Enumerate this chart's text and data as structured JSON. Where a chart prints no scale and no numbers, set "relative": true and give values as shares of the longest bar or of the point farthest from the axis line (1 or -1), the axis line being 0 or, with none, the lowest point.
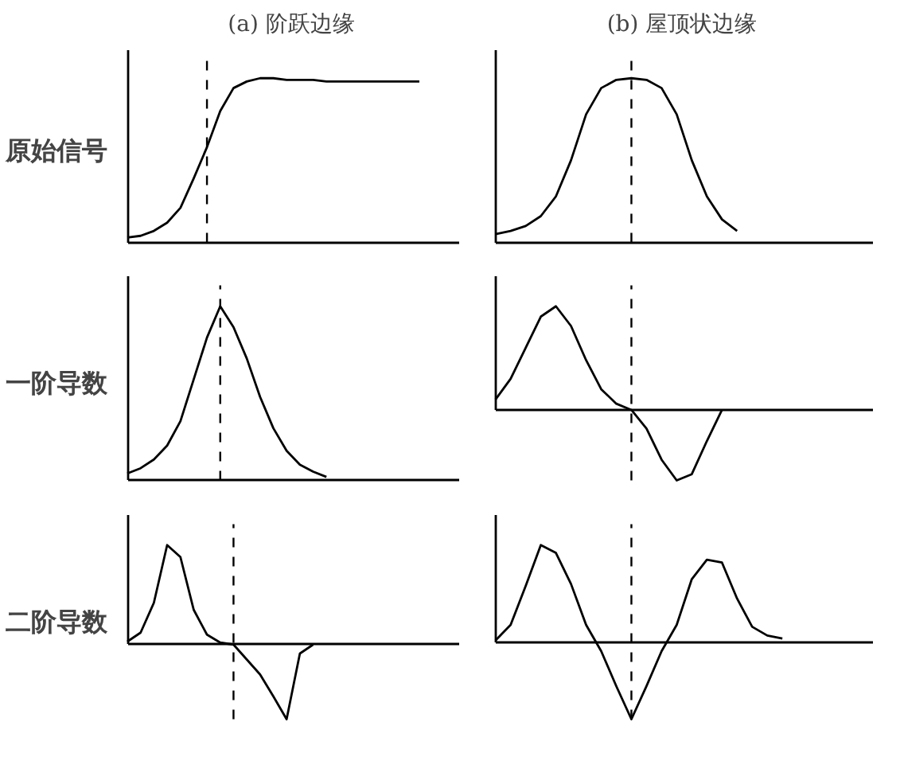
{
  "chart_data": [
    {
      "type": "line",
      "title": "(a) 阶跃边缘",
      "ylabel": "原始信号",
      "relative": true,
      "tick_labels": false,
      "categories": [
        null,
        null,
        null,
        null,
        null,
        null,
        null,
        null,
        null,
        null,
        null,
        null,
        null,
        null,
        null,
        null,
        null,
        null,
        null,
        null,
        null,
        null,
        null,
        null,
        null,
        null
      ],
      "series": [
        {
          "color": "#000000",
          "values": [
            0.03,
            0.04,
            0.07,
            0.12,
            0.21,
            0.39,
            0.58,
            0.8,
            0.94,
            0.98,
            1,
            1,
            0.99,
            0.99,
            0.99,
            0.98,
            0.98,
            0.98,
            0.98,
            0.98,
            0.98,
            0.98,
            0.98,
            null,
            null,
            null
          ]
        }
      ]
    },
    {
      "type": "line",
      "title": "(b) 屋顶状边缘",
      "relative": true,
      "tick_labels": false,
      "categories": [
        null,
        null,
        null,
        null,
        null,
        null,
        null,
        null,
        null,
        null,
        null,
        null,
        null,
        null,
        null,
        null,
        null,
        null,
        null,
        null,
        null,
        null,
        null,
        null,
        null,
        null
      ],
      "series": [
        {
          "color": "#000000",
          "values": [
            0.05,
            0.07,
            0.1,
            0.16,
            0.28,
            0.5,
            0.78,
            0.94,
            0.99,
            1,
            0.99,
            0.94,
            0.78,
            0.5,
            0.28,
            0.14,
            0.07,
            null,
            null,
            null,
            null,
            null,
            null,
            null,
            null,
            null
          ]
        }
      ]
    },
    {
      "type": "line",
      "ylabel": "一阶导数",
      "relative": true,
      "tick_labels": false,
      "categories": [
        null,
        null,
        null,
        null,
        null,
        null,
        null,
        null,
        null,
        null,
        null,
        null,
        null,
        null,
        null,
        null,
        null,
        null,
        null,
        null,
        null,
        null,
        null,
        null,
        null,
        null
      ],
      "series": [
        {
          "color": "#000000",
          "values": [
            0.04,
            0.07,
            0.12,
            0.2,
            0.34,
            0.58,
            0.82,
            1,
            0.88,
            0.7,
            0.48,
            0.3,
            0.17,
            0.09,
            0.05,
            0.02,
            null,
            null,
            null,
            null,
            null,
            null,
            null,
            null,
            null,
            null
          ]
        }
      ]
    },
    {
      "type": "line",
      "relative": true,
      "tick_labels": false,
      "categories": [
        null,
        null,
        null,
        null,
        null,
        null,
        null,
        null,
        null,
        null,
        null,
        null,
        null,
        null,
        null,
        null,
        null,
        null,
        null,
        null,
        null,
        null,
        null,
        null,
        null,
        null
      ],
      "series": [
        {
          "color": "#000000",
          "values": [
            0.1,
            0.3,
            0.6,
            0.9,
            1,
            0.81,
            0.48,
            0.2,
            0.06,
            0,
            -0.18,
            -0.48,
            -0.68,
            -0.62,
            -0.3,
            0,
            null,
            null,
            null,
            null,
            null,
            null,
            null,
            null,
            null,
            null
          ]
        }
      ]
    },
    {
      "type": "line",
      "ylabel": "二阶导数",
      "relative": true,
      "tick_labels": false,
      "categories": [
        null,
        null,
        null,
        null,
        null,
        null,
        null,
        null,
        null,
        null,
        null,
        null,
        null,
        null,
        null,
        null,
        null,
        null,
        null,
        null,
        null,
        null,
        null,
        null,
        null,
        null
      ],
      "series": [
        {
          "color": "#000000",
          "values": [
            0.03,
            0.12,
            0.42,
            1,
            0.88,
            0.35,
            0.1,
            0.02,
            0,
            -0.15,
            -0.3,
            -0.52,
            -0.75,
            -0.09,
            0,
            null,
            null,
            null,
            null,
            null,
            null,
            null,
            null,
            null,
            null,
            null
          ]
        }
      ]
    },
    {
      "type": "line",
      "relative": true,
      "tick_labels": false,
      "categories": [
        null,
        null,
        null,
        null,
        null,
        null,
        null,
        null,
        null,
        null,
        null,
        null,
        null,
        null,
        null,
        null,
        null,
        null,
        null,
        null,
        null,
        null,
        null,
        null,
        null,
        null
      ],
      "series": [
        {
          "color": "#000000",
          "values": [
            0.02,
            0.18,
            0.58,
            1,
            0.92,
            0.6,
            0.18,
            -0.09,
            -0.45,
            -0.79,
            -0.45,
            -0.09,
            0.18,
            0.65,
            0.85,
            0.82,
            0.45,
            0.16,
            0.07,
            0.04,
            null,
            null,
            null,
            null,
            null,
            null
          ]
        }
      ]
    }
  ]
}
